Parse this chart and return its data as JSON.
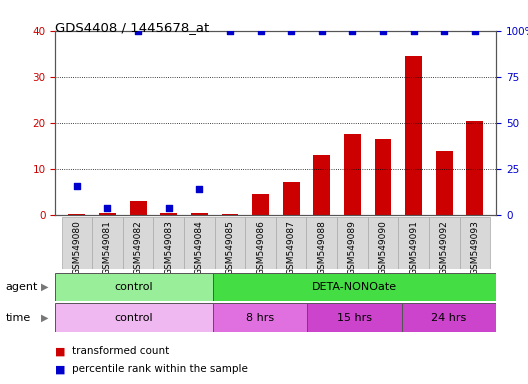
{
  "title": "GDS4408 / 1445678_at",
  "samples": [
    "GSM549080",
    "GSM549081",
    "GSM549082",
    "GSM549083",
    "GSM549084",
    "GSM549085",
    "GSM549086",
    "GSM549087",
    "GSM549088",
    "GSM549089",
    "GSM549090",
    "GSM549091",
    "GSM549092",
    "GSM549093"
  ],
  "red_bars": [
    0.3,
    0.5,
    3.0,
    0.5,
    0.5,
    0.2,
    4.5,
    7.2,
    13.0,
    17.5,
    16.5,
    34.5,
    13.8,
    20.5
  ],
  "blue_dots_pct": [
    16,
    4,
    100,
    4,
    14,
    100,
    100,
    100,
    100,
    100,
    100,
    100,
    100,
    100
  ],
  "left_ylim": [
    0,
    40
  ],
  "right_ylim": [
    0,
    100
  ],
  "left_yticks": [
    0,
    10,
    20,
    30,
    40
  ],
  "right_yticks": [
    0,
    25,
    50,
    75,
    100
  ],
  "right_yticklabels": [
    "0",
    "25",
    "50",
    "75",
    "100%"
  ],
  "red_color": "#cc0000",
  "blue_color": "#0000cc",
  "agent_groups": [
    {
      "label": "control",
      "start": 0,
      "end": 5,
      "color": "#99ee99"
    },
    {
      "label": "DETA-NONOate",
      "start": 5,
      "end": 14,
      "color": "#44dd44"
    }
  ],
  "time_groups": [
    {
      "label": "control",
      "start": 0,
      "end": 5,
      "color": "#f0b8f0"
    },
    {
      "label": "8 hrs",
      "start": 5,
      "end": 8,
      "color": "#e070e0"
    },
    {
      "label": "15 hrs",
      "start": 8,
      "end": 11,
      "color": "#cc44cc"
    },
    {
      "label": "24 hrs",
      "start": 11,
      "end": 14,
      "color": "#cc44cc"
    }
  ],
  "legend_red": "transformed count",
  "legend_blue": "percentile rank within the sample",
  "bar_width": 0.55,
  "dot_size": 18,
  "bg_color": "#ffffff",
  "sample_bg": "#d8d8d8",
  "sample_border": "#aaaaaa"
}
